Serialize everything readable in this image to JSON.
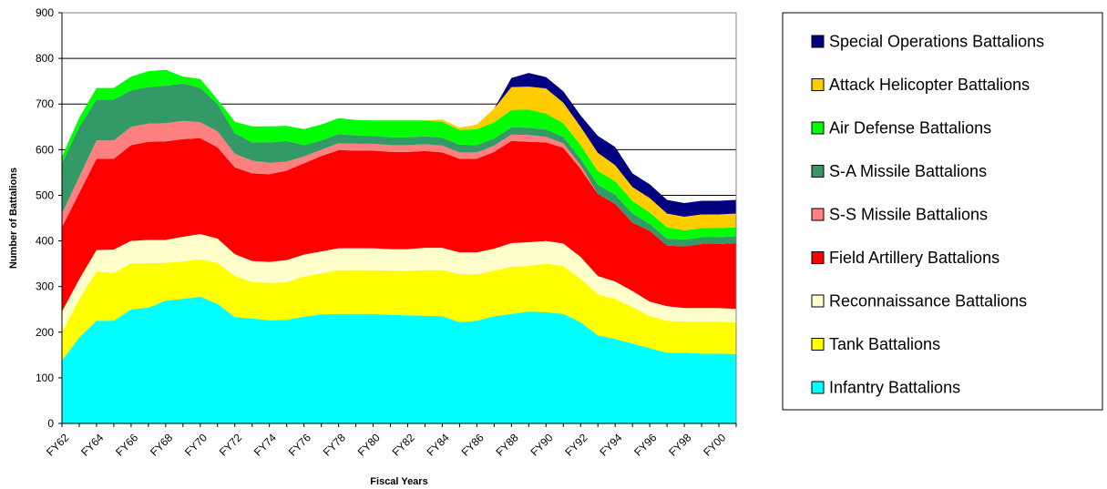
{
  "chart_data": {
    "type": "area",
    "stacked": true,
    "title": "",
    "xlabel": "Fiscal Years",
    "ylabel": "Number of Battalions",
    "ylim": [
      0,
      900
    ],
    "yticks": [
      0,
      100,
      200,
      300,
      400,
      500,
      600,
      700,
      800,
      900
    ],
    "grid": "horizontal",
    "legend_position": "right",
    "x_tick_labels": [
      "FY62",
      "FY64",
      "FY66",
      "FY68",
      "FY70",
      "FY72",
      "FY74",
      "FY76",
      "FY78",
      "FY80",
      "FY82",
      "FY84",
      "FY86",
      "FY88",
      "FY90",
      "FY92",
      "FY94",
      "FY96",
      "FY98",
      "FY00"
    ],
    "x": [
      "FY62",
      "FY63",
      "FY64",
      "FY65",
      "FY66",
      "FY67",
      "FY68",
      "FY69",
      "FY70",
      "FY71",
      "FY72",
      "FY73",
      "FY74",
      "FY75",
      "FY76",
      "FY77",
      "FY78",
      "FY79",
      "FY80",
      "FY81",
      "FY82",
      "FY83",
      "FY84",
      "FY85",
      "FY86",
      "FY87",
      "FY88",
      "FY89",
      "FY90",
      "FY91",
      "FY92",
      "FY93",
      "FY94",
      "FY95",
      "FY96",
      "FY97",
      "FY98",
      "FY99",
      "FY00",
      "FY01"
    ],
    "series": [
      {
        "name": "Infantry Battalions",
        "color": "#00FFFF",
        "values": [
          138,
          188,
          225,
          225,
          250,
          254,
          269,
          273,
          278,
          262,
          233,
          230,
          226,
          227,
          234,
          239,
          240,
          240,
          240,
          238,
          237,
          236,
          235,
          222,
          225,
          235,
          240,
          245,
          244,
          240,
          222,
          193,
          185,
          175,
          165,
          155,
          155,
          153,
          153,
          152
        ]
      },
      {
        "name": "Tank Battalions",
        "color": "#FFFF00",
        "values": [
          62,
          84,
          108,
          105,
          101,
          97,
          83,
          82,
          82,
          90,
          90,
          80,
          82,
          82,
          88,
          90,
          96,
          96,
          96,
          97,
          97,
          100,
          101,
          105,
          102,
          100,
          103,
          100,
          106,
          105,
          95,
          90,
          88,
          80,
          70,
          70,
          68,
          70,
          70,
          69
        ]
      },
      {
        "name": "Reconnaissance Battalions",
        "color": "#FFFFCC",
        "values": [
          45,
          44,
          47,
          51,
          49,
          51,
          50,
          54,
          55,
          53,
          48,
          46,
          46,
          49,
          48,
          48,
          48,
          48,
          48,
          47,
          48,
          49,
          49,
          48,
          48,
          48,
          52,
          52,
          50,
          49,
          48,
          40,
          38,
          35,
          32,
          32,
          30,
          30,
          30,
          30
        ]
      },
      {
        "name": "Field Artillery Battalions",
        "color": "#FF0000",
        "values": [
          185,
          189,
          200,
          199,
          210,
          215,
          216,
          214,
          210,
          200,
          190,
          192,
          192,
          196,
          200,
          209,
          215,
          214,
          214,
          213,
          213,
          212,
          209,
          205,
          205,
          212,
          224,
          220,
          216,
          210,
          193,
          180,
          170,
          150,
          155,
          133,
          135,
          140,
          140,
          144
        ]
      },
      {
        "name": "S-S Missile Battalions",
        "color": "#FF8080",
        "values": [
          30,
          35,
          40,
          40,
          40,
          40,
          40,
          40,
          35,
          35,
          30,
          28,
          25,
          20,
          15,
          14,
          15,
          15,
          15,
          15,
          15,
          15,
          15,
          14,
          14,
          14,
          14,
          15,
          12,
          10,
          8,
          0,
          0,
          0,
          0,
          0,
          0,
          0,
          0,
          0
        ]
      },
      {
        "name": "S-A Missile Battalions",
        "color": "#339966",
        "values": [
          110,
          110,
          90,
          90,
          80,
          80,
          82,
          82,
          75,
          60,
          45,
          40,
          45,
          45,
          25,
          20,
          20,
          18,
          17,
          17,
          17,
          17,
          17,
          17,
          16,
          15,
          16,
          16,
          16,
          14,
          14,
          20,
          20,
          20,
          15,
          15,
          15,
          15,
          15,
          15
        ]
      },
      {
        "name": "Air Defense Battalions",
        "color": "#00FF00",
        "values": [
          15,
          20,
          25,
          25,
          30,
          35,
          35,
          15,
          20,
          10,
          25,
          35,
          35,
          33,
          35,
          35,
          35,
          34,
          34,
          37,
          37,
          35,
          35,
          32,
          35,
          36,
          38,
          40,
          35,
          30,
          30,
          30,
          30,
          28,
          25,
          25,
          20,
          20,
          20,
          20
        ]
      },
      {
        "name": "Attack Helicopter Battalions",
        "color": "#FFCC00",
        "values": [
          0,
          0,
          0,
          0,
          0,
          0,
          0,
          0,
          0,
          0,
          0,
          0,
          0,
          0,
          0,
          0,
          0,
          0,
          0,
          0,
          0,
          0,
          5,
          5,
          10,
          30,
          50,
          50,
          55,
          45,
          40,
          40,
          35,
          30,
          32,
          30,
          30,
          30,
          30,
          30
        ]
      },
      {
        "name": "Special Operations Battalions",
        "color": "#000080",
        "values": [
          0,
          0,
          0,
          0,
          0,
          0,
          0,
          0,
          0,
          0,
          0,
          0,
          0,
          0,
          0,
          0,
          0,
          0,
          0,
          0,
          0,
          0,
          0,
          0,
          0,
          0,
          20,
          30,
          25,
          25,
          25,
          37,
          40,
          30,
          30,
          30,
          30,
          30,
          30,
          30
        ]
      }
    ],
    "legend_order": [
      "Special Operations Battalions",
      "Attack Helicopter Battalions",
      "Air Defense Battalions",
      "S-A Missile Battalions",
      "S-S Missile Battalions",
      "Field Artillery Battalions",
      "Reconnaissance Battalions",
      "Tank Battalions",
      "Infantry Battalions"
    ]
  }
}
